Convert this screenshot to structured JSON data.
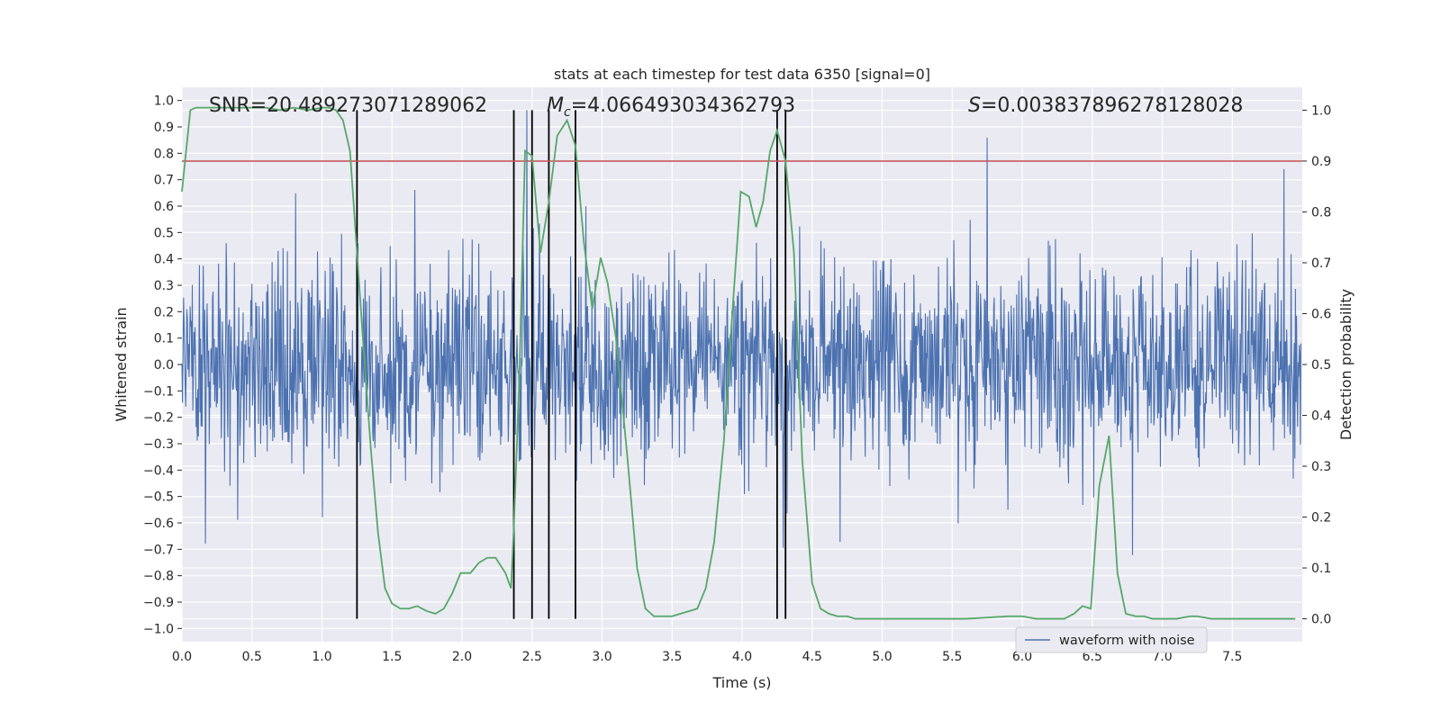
{
  "chart_data": {
    "type": "line",
    "title": "stats at each timestep for test data 6350 [signal=0]",
    "xlabel": "Time (s)",
    "ylabel": "Whitened strain",
    "y2label": "Detection probability",
    "xlim": [
      0.0,
      8.0
    ],
    "ylim": [
      -1.05,
      1.05
    ],
    "y2lim": [
      -0.045,
      1.045
    ],
    "x_ticks": [
      0.0,
      0.5,
      1.0,
      1.5,
      2.0,
      2.5,
      3.0,
      3.5,
      4.0,
      4.5,
      5.0,
      5.5,
      6.0,
      6.5,
      7.0,
      7.5
    ],
    "x_tick_labels": [
      "0.0",
      "0.5",
      "1.0",
      "1.5",
      "2.0",
      "2.5",
      "3.0",
      "3.5",
      "4.0",
      "4.5",
      "5.0",
      "5.5",
      "6.0",
      "6.5",
      "7.0",
      "7.5"
    ],
    "y_ticks": [
      -1.0,
      -0.9,
      -0.8,
      -0.7,
      -0.6,
      -0.5,
      -0.4,
      -0.3,
      -0.2,
      -0.1,
      0.0,
      0.1,
      0.2,
      0.3,
      0.4,
      0.5,
      0.6,
      0.7,
      0.8,
      0.9,
      1.0
    ],
    "y_tick_labels": [
      "−1.0",
      "−0.9",
      "−0.8",
      "−0.7",
      "−0.6",
      "−0.5",
      "−0.4",
      "−0.3",
      "−0.2",
      "−0.1",
      "0.0",
      "0.1",
      "0.2",
      "0.3",
      "0.4",
      "0.5",
      "0.6",
      "0.7",
      "0.8",
      "0.9",
      "1.0"
    ],
    "y2_ticks": [
      0.0,
      0.1,
      0.2,
      0.3,
      0.4,
      0.5,
      0.6,
      0.7,
      0.8,
      0.9,
      1.0
    ],
    "y2_tick_labels": [
      "0.0",
      "0.1",
      "0.2",
      "0.3",
      "0.4",
      "0.5",
      "0.6",
      "0.7",
      "0.8",
      "0.9",
      "1.0"
    ],
    "annotations": {
      "snr": "SNR=20.489273071289062",
      "mc_symbol": "M",
      "mc_sub": "c",
      "mc_value": "=4.066493034362793",
      "s_symbol": "S",
      "s_value": "=0.003837896278128028"
    },
    "legend": {
      "label": "waveform with noise",
      "position": "lower-right"
    },
    "threshold": {
      "value": 0.9,
      "axis": "y2",
      "color": "#c44e52"
    },
    "vertical_lines": [
      1.25,
      2.37,
      2.5,
      2.62,
      2.81,
      4.25,
      4.31
    ],
    "waveform": {
      "name": "waveform with noise",
      "color": "#4c72b0",
      "x_range": [
        0.0,
        7.99
      ],
      "num_samples": 2048,
      "amplitude_range": [
        -0.93,
        1.0
      ]
    },
    "series": [
      {
        "name": "detection probability",
        "axis": "y2",
        "color": "#55a868",
        "x": [
          0.0,
          0.06,
          0.1,
          0.15,
          0.2,
          0.3,
          0.4,
          0.5,
          0.6,
          0.7,
          0.8,
          0.9,
          1.0,
          1.05,
          1.1,
          1.15,
          1.2,
          1.25,
          1.3,
          1.35,
          1.4,
          1.45,
          1.5,
          1.56,
          1.62,
          1.68,
          1.75,
          1.81,
          1.87,
          1.93,
          1.99,
          2.06,
          2.12,
          2.18,
          2.24,
          2.31,
          2.35,
          2.37,
          2.41,
          2.45,
          2.5,
          2.56,
          2.62,
          2.68,
          2.75,
          2.81,
          2.87,
          2.93,
          2.99,
          3.04,
          3.1,
          3.18,
          3.25,
          3.31,
          3.37,
          3.43,
          3.5,
          3.56,
          3.62,
          3.68,
          3.74,
          3.8,
          3.87,
          3.93,
          3.99,
          4.05,
          4.1,
          4.15,
          4.2,
          4.25,
          4.31,
          4.37,
          4.43,
          4.5,
          4.56,
          4.62,
          4.68,
          4.75,
          4.81,
          5.0,
          5.3,
          5.6,
          5.9,
          6.0,
          6.1,
          6.2,
          6.3,
          6.37,
          6.43,
          6.49,
          6.55,
          6.62,
          6.68,
          6.74,
          6.81,
          6.87,
          6.93,
          7.0,
          7.1,
          7.2,
          7.25,
          7.35,
          7.5,
          7.65,
          7.8,
          7.95
        ],
        "values": [
          0.84,
          1.0,
          1.005,
          1.005,
          1.005,
          1.005,
          1.005,
          1.005,
          1.005,
          1.0,
          1.005,
          1.0,
          1.005,
          1.005,
          1.0,
          0.98,
          0.92,
          0.72,
          0.52,
          0.33,
          0.17,
          0.06,
          0.03,
          0.02,
          0.02,
          0.025,
          0.015,
          0.01,
          0.02,
          0.05,
          0.09,
          0.09,
          0.11,
          0.12,
          0.12,
          0.09,
          0.06,
          0.18,
          0.48,
          0.92,
          0.91,
          0.72,
          0.82,
          0.95,
          0.98,
          0.93,
          0.74,
          0.61,
          0.71,
          0.66,
          0.55,
          0.32,
          0.1,
          0.02,
          0.005,
          0.005,
          0.005,
          0.01,
          0.015,
          0.02,
          0.06,
          0.15,
          0.35,
          0.6,
          0.84,
          0.83,
          0.77,
          0.82,
          0.92,
          0.96,
          0.9,
          0.72,
          0.31,
          0.07,
          0.02,
          0.01,
          0.005,
          0.005,
          0.0,
          0.0,
          0.0,
          0.0,
          0.005,
          0.005,
          0.0,
          0.0,
          0.0,
          0.01,
          0.025,
          0.02,
          0.26,
          0.36,
          0.09,
          0.01,
          0.005,
          0.005,
          0.0,
          0.0,
          0.0,
          0.005,
          0.005,
          0.0,
          0.0,
          0.0,
          0.0,
          0.0
        ]
      }
    ]
  }
}
